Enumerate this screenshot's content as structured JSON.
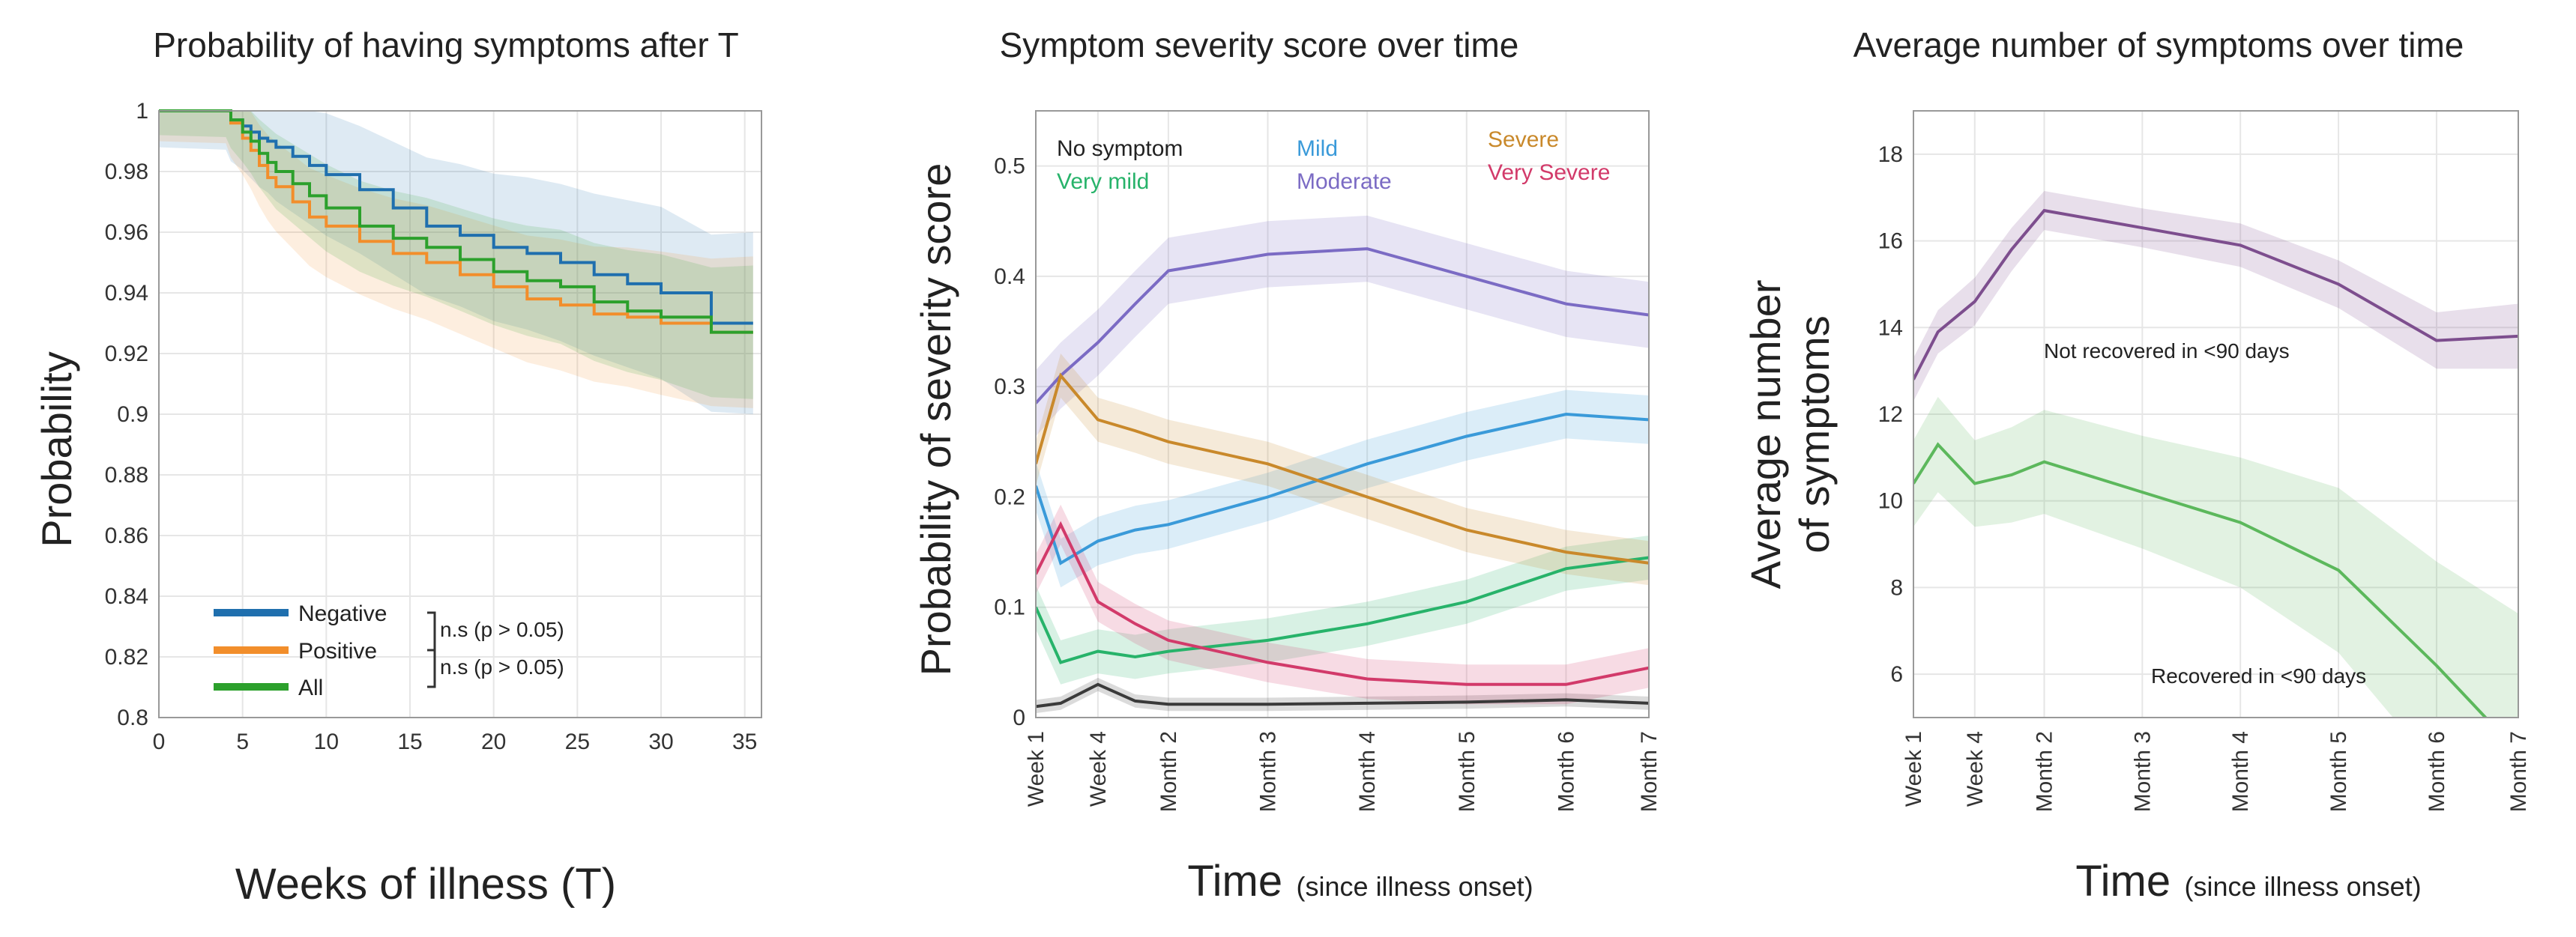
{
  "chart_data": [
    {
      "type": "line",
      "title": "Probability of having symptoms after T",
      "xlabel": "Weeks of illness (T)",
      "ylabel": "Probability",
      "xlim": [
        0,
        36
      ],
      "ylim": [
        0.8,
        1.0
      ],
      "xticks": [
        0,
        5,
        10,
        15,
        20,
        25,
        30,
        35
      ],
      "yticks": [
        0.8,
        0.82,
        0.84,
        0.86,
        0.88,
        0.9,
        0.92,
        0.94,
        0.96,
        0.98,
        1
      ],
      "ytick_labels": [
        "0.8",
        "0.82",
        "0.84",
        "0.86",
        "0.88",
        "0.9",
        "0.92",
        "0.94",
        "0.96",
        "0.98",
        "1"
      ],
      "grid": true,
      "legend_position": "bottom-left",
      "significance": [
        "n.s (p > 0.05)",
        "n.s (p > 0.05)"
      ],
      "series": [
        {
          "name": "Negative",
          "color": "#1f6fae",
          "x": [
            0,
            4,
            4.3,
            5,
            5.5,
            6,
            6.5,
            7,
            8,
            9,
            10,
            12,
            14,
            16,
            18,
            20,
            22,
            24,
            26,
            28,
            30,
            33,
            35.5
          ],
          "y": [
            1,
            1,
            0.997,
            0.995,
            0.993,
            0.991,
            0.99,
            0.988,
            0.985,
            0.982,
            0.979,
            0.974,
            0.968,
            0.962,
            0.959,
            0.955,
            0.953,
            0.95,
            0.946,
            0.943,
            0.94,
            0.93,
            0.93
          ],
          "band": [
            0.012,
            0.03
          ]
        },
        {
          "name": "Positive",
          "color": "#f28e2b",
          "x": [
            0,
            4,
            4.3,
            5,
            5.5,
            6,
            6.5,
            7,
            8,
            9,
            10,
            12,
            14,
            16,
            18,
            20,
            22,
            24,
            26,
            28,
            30,
            33,
            35.5
          ],
          "y": [
            1,
            1,
            0.996,
            0.991,
            0.987,
            0.982,
            0.978,
            0.975,
            0.97,
            0.965,
            0.962,
            0.957,
            0.953,
            0.95,
            0.946,
            0.942,
            0.938,
            0.936,
            0.933,
            0.932,
            0.93,
            0.927,
            0.927
          ],
          "band": [
            0.01,
            0.025
          ]
        },
        {
          "name": "All",
          "color": "#2ca02c",
          "x": [
            0,
            4,
            4.3,
            5,
            5.5,
            6,
            6.5,
            7,
            8,
            9,
            10,
            12,
            14,
            16,
            18,
            20,
            22,
            24,
            26,
            28,
            30,
            33,
            35.5
          ],
          "y": [
            1,
            1,
            0.997,
            0.993,
            0.99,
            0.986,
            0.983,
            0.98,
            0.976,
            0.972,
            0.968,
            0.962,
            0.958,
            0.955,
            0.951,
            0.947,
            0.944,
            0.942,
            0.937,
            0.934,
            0.932,
            0.927,
            0.927
          ],
          "band": [
            0.008,
            0.022
          ]
        }
      ]
    },
    {
      "type": "line",
      "title": "Symptom severity score over time",
      "xlabel": "Time",
      "xlabel_sub": "(since illness onset)",
      "ylabel": "Probability of severity score",
      "categories": [
        "Week 1",
        "Week 4",
        "Month 2",
        "Month 3",
        "Month 4",
        "Month 5",
        "Month 6",
        "Month 7"
      ],
      "xpos": [
        1,
        1.75,
        2.6,
        3.8,
        5,
        6.2,
        7.4,
        8.4
      ],
      "ylim": [
        0,
        0.55
      ],
      "yticks": [
        0,
        0.1,
        0.2,
        0.3,
        0.4,
        0.5
      ],
      "ytick_labels": [
        "0",
        "0.1",
        "0.2",
        "0.3",
        "0.4",
        "0.5"
      ],
      "grid": true,
      "legend_position": "top",
      "series": [
        {
          "name": "No symptom",
          "color": "#3a3a3a",
          "x": [
            1,
            1.3,
            1.75,
            2.2,
            2.6,
            3.8,
            5,
            6.2,
            7.4,
            8.4
          ],
          "y": [
            0.01,
            0.013,
            0.03,
            0.015,
            0.012,
            0.012,
            0.013,
            0.014,
            0.016,
            0.013
          ],
          "band": 0.006
        },
        {
          "name": "Very mild",
          "color": "#27b36a",
          "x": [
            1,
            1.3,
            1.75,
            2.2,
            2.6,
            3.8,
            5,
            6.2,
            7.4,
            8.4
          ],
          "y": [
            0.1,
            0.05,
            0.06,
            0.055,
            0.06,
            0.07,
            0.085,
            0.105,
            0.135,
            0.145
          ],
          "band": 0.02
        },
        {
          "name": "Mild",
          "color": "#3a9ad9",
          "x": [
            1,
            1.3,
            1.75,
            2.2,
            2.6,
            3.8,
            5,
            6.2,
            7.4,
            8.4
          ],
          "y": [
            0.21,
            0.14,
            0.16,
            0.17,
            0.175,
            0.2,
            0.23,
            0.255,
            0.275,
            0.27
          ],
          "band": 0.022
        },
        {
          "name": "Moderate",
          "color": "#7b6bc4",
          "x": [
            1,
            1.3,
            1.75,
            2.2,
            2.6,
            3.8,
            5,
            6.2,
            7.4,
            8.4
          ],
          "y": [
            0.285,
            0.31,
            0.34,
            0.375,
            0.405,
            0.42,
            0.425,
            0.4,
            0.375,
            0.365
          ],
          "band": 0.03
        },
        {
          "name": "Severe",
          "color": "#c9892b",
          "x": [
            1,
            1.3,
            1.75,
            2.2,
            2.6,
            3.8,
            5,
            6.2,
            7.4,
            8.4
          ],
          "y": [
            0.23,
            0.31,
            0.27,
            0.26,
            0.25,
            0.23,
            0.2,
            0.17,
            0.15,
            0.14
          ],
          "band": 0.02
        },
        {
          "name": "Very Severe",
          "color": "#d23a6a",
          "x": [
            1,
            1.3,
            1.75,
            2.2,
            2.6,
            3.8,
            5,
            6.2,
            7.4,
            8.4
          ],
          "y": [
            0.13,
            0.175,
            0.105,
            0.085,
            0.07,
            0.05,
            0.035,
            0.03,
            0.03,
            0.045
          ],
          "band": 0.018
        }
      ]
    },
    {
      "type": "line",
      "title": "Average number of symptoms over time",
      "xlabel": "Time",
      "xlabel_sub": "(since illness onset)",
      "ylabel": [
        "Average number",
        "of symptoms"
      ],
      "categories": [
        "Week 1",
        "Week 4",
        "Month 2",
        "Month 3",
        "Month 4",
        "Month 5",
        "Month 6",
        "Month 7"
      ],
      "xpos": [
        1,
        1.75,
        2.6,
        3.8,
        5,
        6.2,
        7.4,
        8.4
      ],
      "ylim": [
        5,
        19
      ],
      "yticks": [
        6,
        8,
        10,
        12,
        14,
        16,
        18
      ],
      "ytick_labels": [
        "6",
        "8",
        "10",
        "12",
        "14",
        "16",
        "18"
      ],
      "grid": true,
      "annotations": [
        "Not recovered in <90 days",
        "Recovered in <90 days"
      ],
      "series": [
        {
          "name": "Not recovered in <90 days",
          "color": "#7d4e8e",
          "x": [
            1,
            1.3,
            1.75,
            2.2,
            2.6,
            3.8,
            5,
            6.2,
            7.4,
            8.4
          ],
          "y": [
            12.8,
            13.9,
            14.6,
            15.8,
            16.7,
            16.3,
            15.9,
            15.0,
            13.7,
            13.8
          ],
          "band": [
            0.5,
            0.5,
            0.55,
            0.5,
            0.45,
            0.45,
            0.5,
            0.55,
            0.65,
            0.75
          ]
        },
        {
          "name": "Recovered in <90 days",
          "color": "#5cb85c",
          "x": [
            1,
            1.3,
            1.75,
            2.2,
            2.6,
            3.8,
            5,
            6.2,
            7.4,
            8.4
          ],
          "y": [
            10.4,
            11.3,
            10.4,
            10.6,
            10.9,
            10.2,
            9.5,
            8.4,
            6.2,
            4.2
          ],
          "band": [
            1.0,
            1.1,
            1.0,
            1.1,
            1.2,
            1.3,
            1.5,
            1.9,
            2.4,
            3.2
          ]
        }
      ]
    }
  ]
}
